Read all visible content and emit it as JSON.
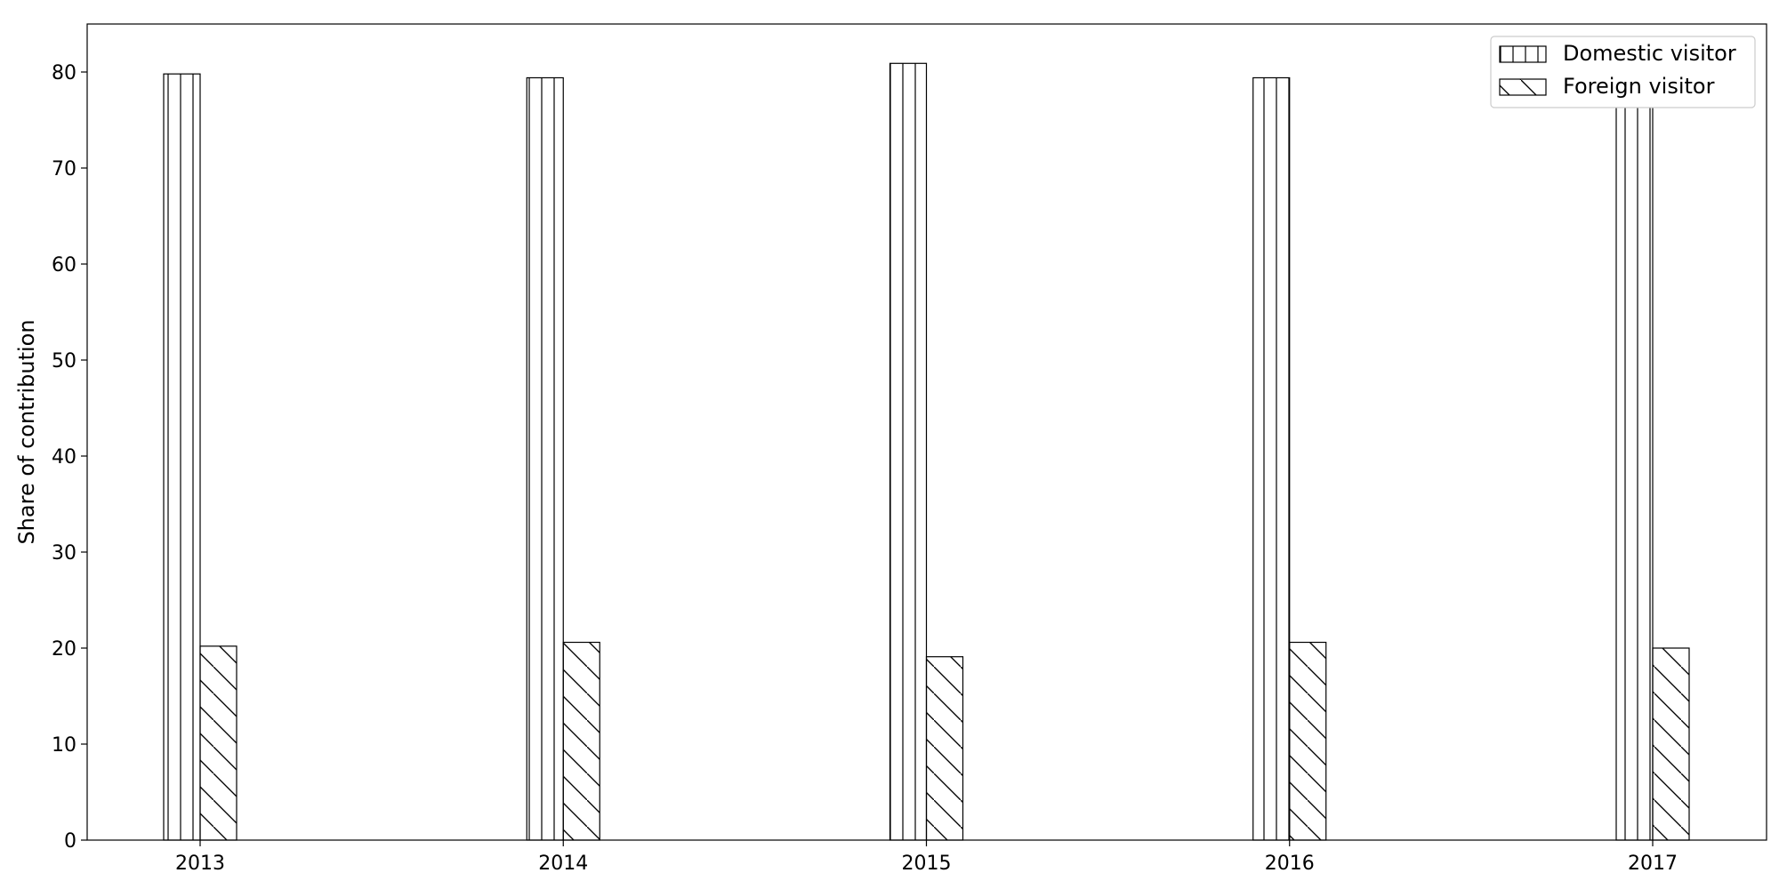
{
  "chart_data": {
    "type": "bar",
    "categories": [
      "2013",
      "2014",
      "2015",
      "2016",
      "2017"
    ],
    "series": [
      {
        "name": "Domestic visitor",
        "values": [
          79.8,
          79.4,
          80.9,
          79.4,
          80.0
        ],
        "hatch": "vertical"
      },
      {
        "name": "Foreign visitor",
        "values": [
          20.2,
          20.6,
          19.1,
          20.6,
          20.0
        ],
        "hatch": "diagonal"
      }
    ],
    "title": "",
    "xlabel": "",
    "ylabel": "Share of contribution",
    "ylim": [
      0,
      85
    ],
    "yticks": [
      0,
      10,
      20,
      30,
      40,
      50,
      60,
      70,
      80
    ],
    "grid": false,
    "legend_position": "top-right",
    "colors": {
      "bar_fill": "#ffffff",
      "bar_edge": "#000000",
      "axis": "#000000"
    }
  }
}
